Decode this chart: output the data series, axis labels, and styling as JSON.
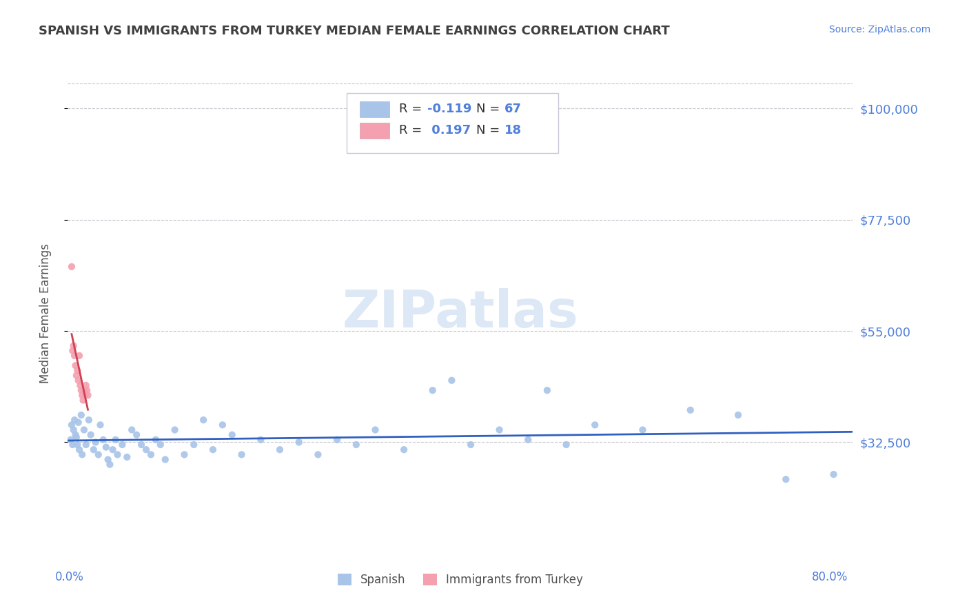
{
  "title": "SPANISH VS IMMIGRANTS FROM TURKEY MEDIAN FEMALE EARNINGS CORRELATION CHART",
  "source": "Source: ZipAtlas.com",
  "ylabel": "Median Female Earnings",
  "y_tick_vals": [
    32500,
    55000,
    77500,
    100000
  ],
  "y_tick_labels": [
    "$32,500",
    "$55,000",
    "$77,500",
    "$100,000"
  ],
  "y_min": 10000,
  "y_max": 107000,
  "x_min": -0.002,
  "x_max": 0.82,
  "background_color": "#ffffff",
  "grid_color": "#c8c8d0",
  "spanish_color": "#a8c4e8",
  "turkey_color": "#f4a0b0",
  "trend_spanish_color": "#3060c0",
  "trend_turkey_color": "#d04050",
  "title_color": "#404040",
  "axis_label_color": "#4f7fda",
  "watermark_color": "#dce8f5",
  "spanish_scatter": [
    [
      0.001,
      33000
    ],
    [
      0.002,
      36000
    ],
    [
      0.003,
      32000
    ],
    [
      0.004,
      35000
    ],
    [
      0.005,
      37000
    ],
    [
      0.006,
      34000
    ],
    [
      0.007,
      33500
    ],
    [
      0.008,
      32000
    ],
    [
      0.009,
      36500
    ],
    [
      0.01,
      31000
    ],
    [
      0.012,
      38000
    ],
    [
      0.013,
      30000
    ],
    [
      0.015,
      35000
    ],
    [
      0.017,
      32000
    ],
    [
      0.02,
      37000
    ],
    [
      0.022,
      34000
    ],
    [
      0.025,
      31000
    ],
    [
      0.027,
      32500
    ],
    [
      0.03,
      30000
    ],
    [
      0.032,
      36000
    ],
    [
      0.035,
      33000
    ],
    [
      0.038,
      31500
    ],
    [
      0.04,
      29000
    ],
    [
      0.042,
      28000
    ],
    [
      0.045,
      31000
    ],
    [
      0.048,
      33000
    ],
    [
      0.05,
      30000
    ],
    [
      0.055,
      32000
    ],
    [
      0.06,
      29500
    ],
    [
      0.065,
      35000
    ],
    [
      0.07,
      34000
    ],
    [
      0.075,
      32000
    ],
    [
      0.08,
      31000
    ],
    [
      0.085,
      30000
    ],
    [
      0.09,
      33000
    ],
    [
      0.095,
      32000
    ],
    [
      0.1,
      29000
    ],
    [
      0.11,
      35000
    ],
    [
      0.12,
      30000
    ],
    [
      0.13,
      32000
    ],
    [
      0.14,
      37000
    ],
    [
      0.15,
      31000
    ],
    [
      0.16,
      36000
    ],
    [
      0.17,
      34000
    ],
    [
      0.18,
      30000
    ],
    [
      0.2,
      33000
    ],
    [
      0.22,
      31000
    ],
    [
      0.24,
      32500
    ],
    [
      0.26,
      30000
    ],
    [
      0.28,
      33000
    ],
    [
      0.3,
      32000
    ],
    [
      0.32,
      35000
    ],
    [
      0.35,
      31000
    ],
    [
      0.38,
      43000
    ],
    [
      0.4,
      45000
    ],
    [
      0.42,
      32000
    ],
    [
      0.45,
      35000
    ],
    [
      0.48,
      33000
    ],
    [
      0.5,
      43000
    ],
    [
      0.52,
      32000
    ],
    [
      0.55,
      36000
    ],
    [
      0.6,
      35000
    ],
    [
      0.65,
      39000
    ],
    [
      0.7,
      38000
    ],
    [
      0.75,
      25000
    ],
    [
      0.8,
      26000
    ]
  ],
  "turkey_scatter": [
    [
      0.002,
      68000
    ],
    [
      0.003,
      51000
    ],
    [
      0.004,
      52000
    ],
    [
      0.005,
      50000
    ],
    [
      0.006,
      48000
    ],
    [
      0.007,
      46000
    ],
    [
      0.008,
      47000
    ],
    [
      0.009,
      45000
    ],
    [
      0.01,
      50000
    ],
    [
      0.011,
      44000
    ],
    [
      0.012,
      43000
    ],
    [
      0.013,
      42000
    ],
    [
      0.014,
      41000
    ],
    [
      0.015,
      43000
    ],
    [
      0.016,
      42000
    ],
    [
      0.017,
      44000
    ],
    [
      0.018,
      43000
    ],
    [
      0.019,
      42000
    ]
  ]
}
